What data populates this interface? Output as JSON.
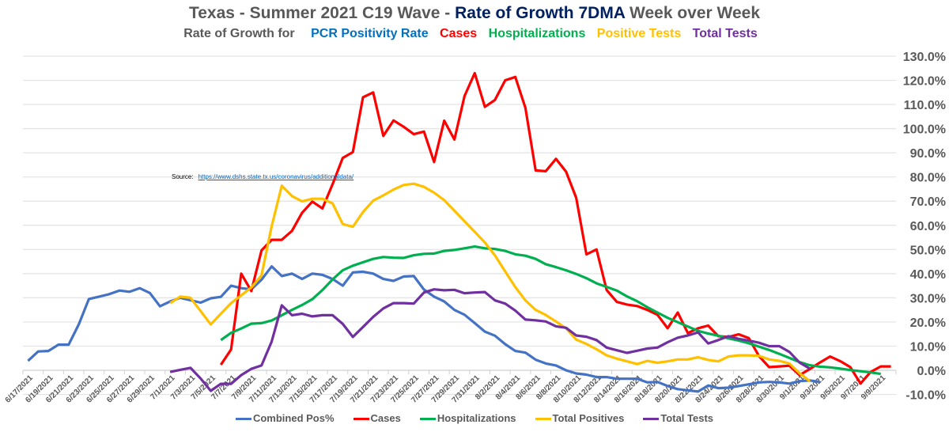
{
  "title": {
    "part1": "Texas - Summer 2021 C19 Wave - ",
    "part2": "Rate of Growth 7DMA",
    "part3": " Week over Week"
  },
  "subtitle": {
    "lead": "Rate of Growth for",
    "items": [
      {
        "label": "PCR Positivity Rate",
        "color": "#0070C0"
      },
      {
        "label": "Cases",
        "color": "#FF0000"
      },
      {
        "label": "Hospitalizations",
        "color": "#00B050"
      },
      {
        "label": "Positive Tests",
        "color": "#FFC000"
      },
      {
        "label": "Total Tests",
        "color": "#7030A0"
      }
    ]
  },
  "source": {
    "label": "Source:",
    "url": "https://www.dshs.state.tx.us/coronavirus/additionaldata/"
  },
  "chart_data": {
    "type": "line",
    "title": "Texas - Summer 2021 C19 Wave - Rate of Growth 7DMA Week over Week",
    "num_categories": 86,
    "x_labels": [
      "6/17/2021",
      "6/19/2021",
      "6/21/2021",
      "6/23/2021",
      "6/25/2021",
      "6/27/2021",
      "6/29/2021",
      "7/1/2021",
      "7/3/2021",
      "7/5/2021",
      "7/7/2021",
      "7/9/2021",
      "7/11/2021",
      "7/13/2021",
      "7/15/2021",
      "7/17/2021",
      "7/19/2021",
      "7/21/2021",
      "7/23/2021",
      "7/25/2021",
      "7/27/2021",
      "7/29/2021",
      "7/31/2021",
      "8/2/2021",
      "8/4/2021",
      "8/6/2021",
      "8/8/2021",
      "8/10/2021",
      "8/12/2021",
      "8/14/2021",
      "8/16/2021",
      "8/18/2021",
      "8/20/2021",
      "8/22/2021",
      "8/24/2021",
      "8/26/2021",
      "8/28/2021",
      "8/30/2021",
      "9/1/2021",
      "9/3/2021",
      "9/5/2021",
      "9/7/2021",
      "9/9/2021"
    ],
    "y_ticks": [
      "130.0%",
      "120.0%",
      "110.0%",
      "100.0%",
      "90.0%",
      "80.0%",
      "70.0%",
      "60.0%",
      "50.0%",
      "40.0%",
      "30.0%",
      "20.0%",
      "10.0%",
      "0.0%",
      "-10.0%"
    ],
    "ylim": [
      -10,
      130
    ],
    "grid": true,
    "legend_position": "bottom",
    "series": [
      {
        "name": "Combined Pos%",
        "color": "#4472C4",
        "start_index": 0,
        "values": [
          3.9,
          7.8,
          8.0,
          10.6,
          10.6,
          19,
          29.5,
          30.5,
          31.5,
          33,
          32.5,
          34,
          32,
          26.5,
          28.5,
          30,
          29,
          28,
          29.8,
          30.4,
          35,
          34,
          33.5,
          37.5,
          43,
          39,
          40,
          37.8,
          40,
          39.5,
          37.8,
          35,
          40.5,
          40.8,
          40,
          37.8,
          37,
          38.8,
          39,
          33.4,
          30.5,
          28.5,
          25,
          23,
          19.5,
          16,
          14.3,
          10.8,
          8,
          7.3,
          4.4,
          2.8,
          2,
          0,
          -1.3,
          -1.8,
          -2.8,
          -2.8,
          -3.5,
          -3.5,
          -3.5,
          -5,
          -4.8,
          -6.5,
          -7.8,
          -8.3,
          -8.8,
          -6.3,
          -7.4,
          -7.2,
          -6.5,
          -5.8,
          -5,
          -4.8,
          -5,
          -5.5,
          -4.5,
          -4.2,
          -4.8
        ]
      },
      {
        "name": "Cases",
        "color": "#FF0000",
        "start_index": 19,
        "values": [
          2.3,
          8.6,
          40,
          32.8,
          49.6,
          54,
          54,
          57.7,
          65.2,
          69.8,
          67,
          77,
          87.9,
          90.3,
          113,
          115,
          97,
          103.4,
          100.8,
          97.7,
          98.8,
          86.2,
          103.3,
          95.5,
          113.5,
          123,
          109,
          111.9,
          120,
          121.4,
          108.6,
          82.7,
          82.4,
          87.5,
          82.2,
          71.4,
          48,
          50,
          33.2,
          28.3,
          27.2,
          26.6,
          25,
          23,
          17.4,
          23.9,
          15.4,
          17.4,
          18.5,
          14.1,
          13.8,
          14.9,
          13.3,
          5.9,
          1.3,
          1.6,
          1.9,
          -2,
          0.5,
          3.2,
          5.7,
          3.8,
          1.3,
          -5.5,
          -0.7,
          1.6,
          1.6
        ]
      },
      {
        "name": "Hospitalizations",
        "color": "#00B050",
        "start_index": 19,
        "values": [
          12.5,
          15.5,
          17.3,
          19.3,
          19.5,
          20.6,
          22.8,
          25,
          27,
          29.4,
          33.2,
          37.6,
          41.4,
          43.3,
          44.7,
          46.1,
          46.9,
          46.6,
          46.5,
          47.6,
          48.2,
          48.3,
          49.4,
          49.8,
          50.5,
          51.2,
          50.5,
          50.2,
          49.4,
          48,
          47.4,
          46.1,
          43.9,
          42.7,
          41.4,
          39.9,
          38.1,
          36,
          34.5,
          33,
          30.6,
          28.6,
          26.1,
          23.9,
          21.7,
          19.9,
          18.1,
          16.3,
          15.2,
          14.3,
          13.2,
          12.3,
          11.2,
          9.8,
          8.4,
          6.8,
          5.1,
          3.4,
          2.1,
          1.5,
          1.2,
          0.7,
          0.1,
          -0.4,
          -0.9,
          -1.5
        ]
      },
      {
        "name": "Total Positives",
        "color": "#FFC000",
        "start_index": 14,
        "values": [
          27.8,
          30.5,
          30,
          24.5,
          19,
          23.4,
          27.8,
          31,
          34.3,
          39.3,
          59.6,
          76.4,
          72.1,
          69.9,
          71,
          71,
          69.1,
          60.5,
          59.4,
          65.5,
          70.2,
          72.4,
          74.8,
          76.7,
          77.2,
          75.9,
          73.5,
          70.4,
          66,
          61.7,
          57.3,
          52.9,
          47.5,
          40.9,
          34.4,
          28.9,
          25,
          22.9,
          20.2,
          17.4,
          12.7,
          10.9,
          8.7,
          6.2,
          4.8,
          3.7,
          2.6,
          3.9,
          3.1,
          3.7,
          4.5,
          4.5,
          5.4,
          4.3,
          3.7,
          5.7,
          6.2,
          6.2,
          6,
          4.5,
          3.9,
          2.8,
          -1.2,
          -4.5
        ]
      },
      {
        "name": "Total Tests",
        "color": "#7030A0",
        "start_index": 14,
        "values": [
          -0.7,
          0.2,
          1,
          -3.4,
          -8.5,
          -5.6,
          -5.6,
          -2,
          0.6,
          2,
          11.9,
          26.9,
          22.8,
          23.4,
          22.3,
          22.8,
          22.8,
          19.2,
          13.8,
          17.9,
          22.1,
          25.6,
          27.8,
          27.8,
          27.6,
          32.2,
          33.5,
          33.1,
          33.3,
          31.9,
          32.2,
          32.4,
          28.9,
          27.6,
          24.7,
          21,
          20.7,
          20.2,
          18.2,
          17.6,
          14.4,
          13.9,
          12.5,
          9.4,
          8.3,
          7.2,
          8.1,
          9,
          9.4,
          11.6,
          13.5,
          14.4,
          15.7,
          11.1,
          12.5,
          14.1,
          13,
          12.3,
          11.4,
          10,
          10,
          7.6,
          3.2,
          0.7
        ]
      }
    ]
  }
}
